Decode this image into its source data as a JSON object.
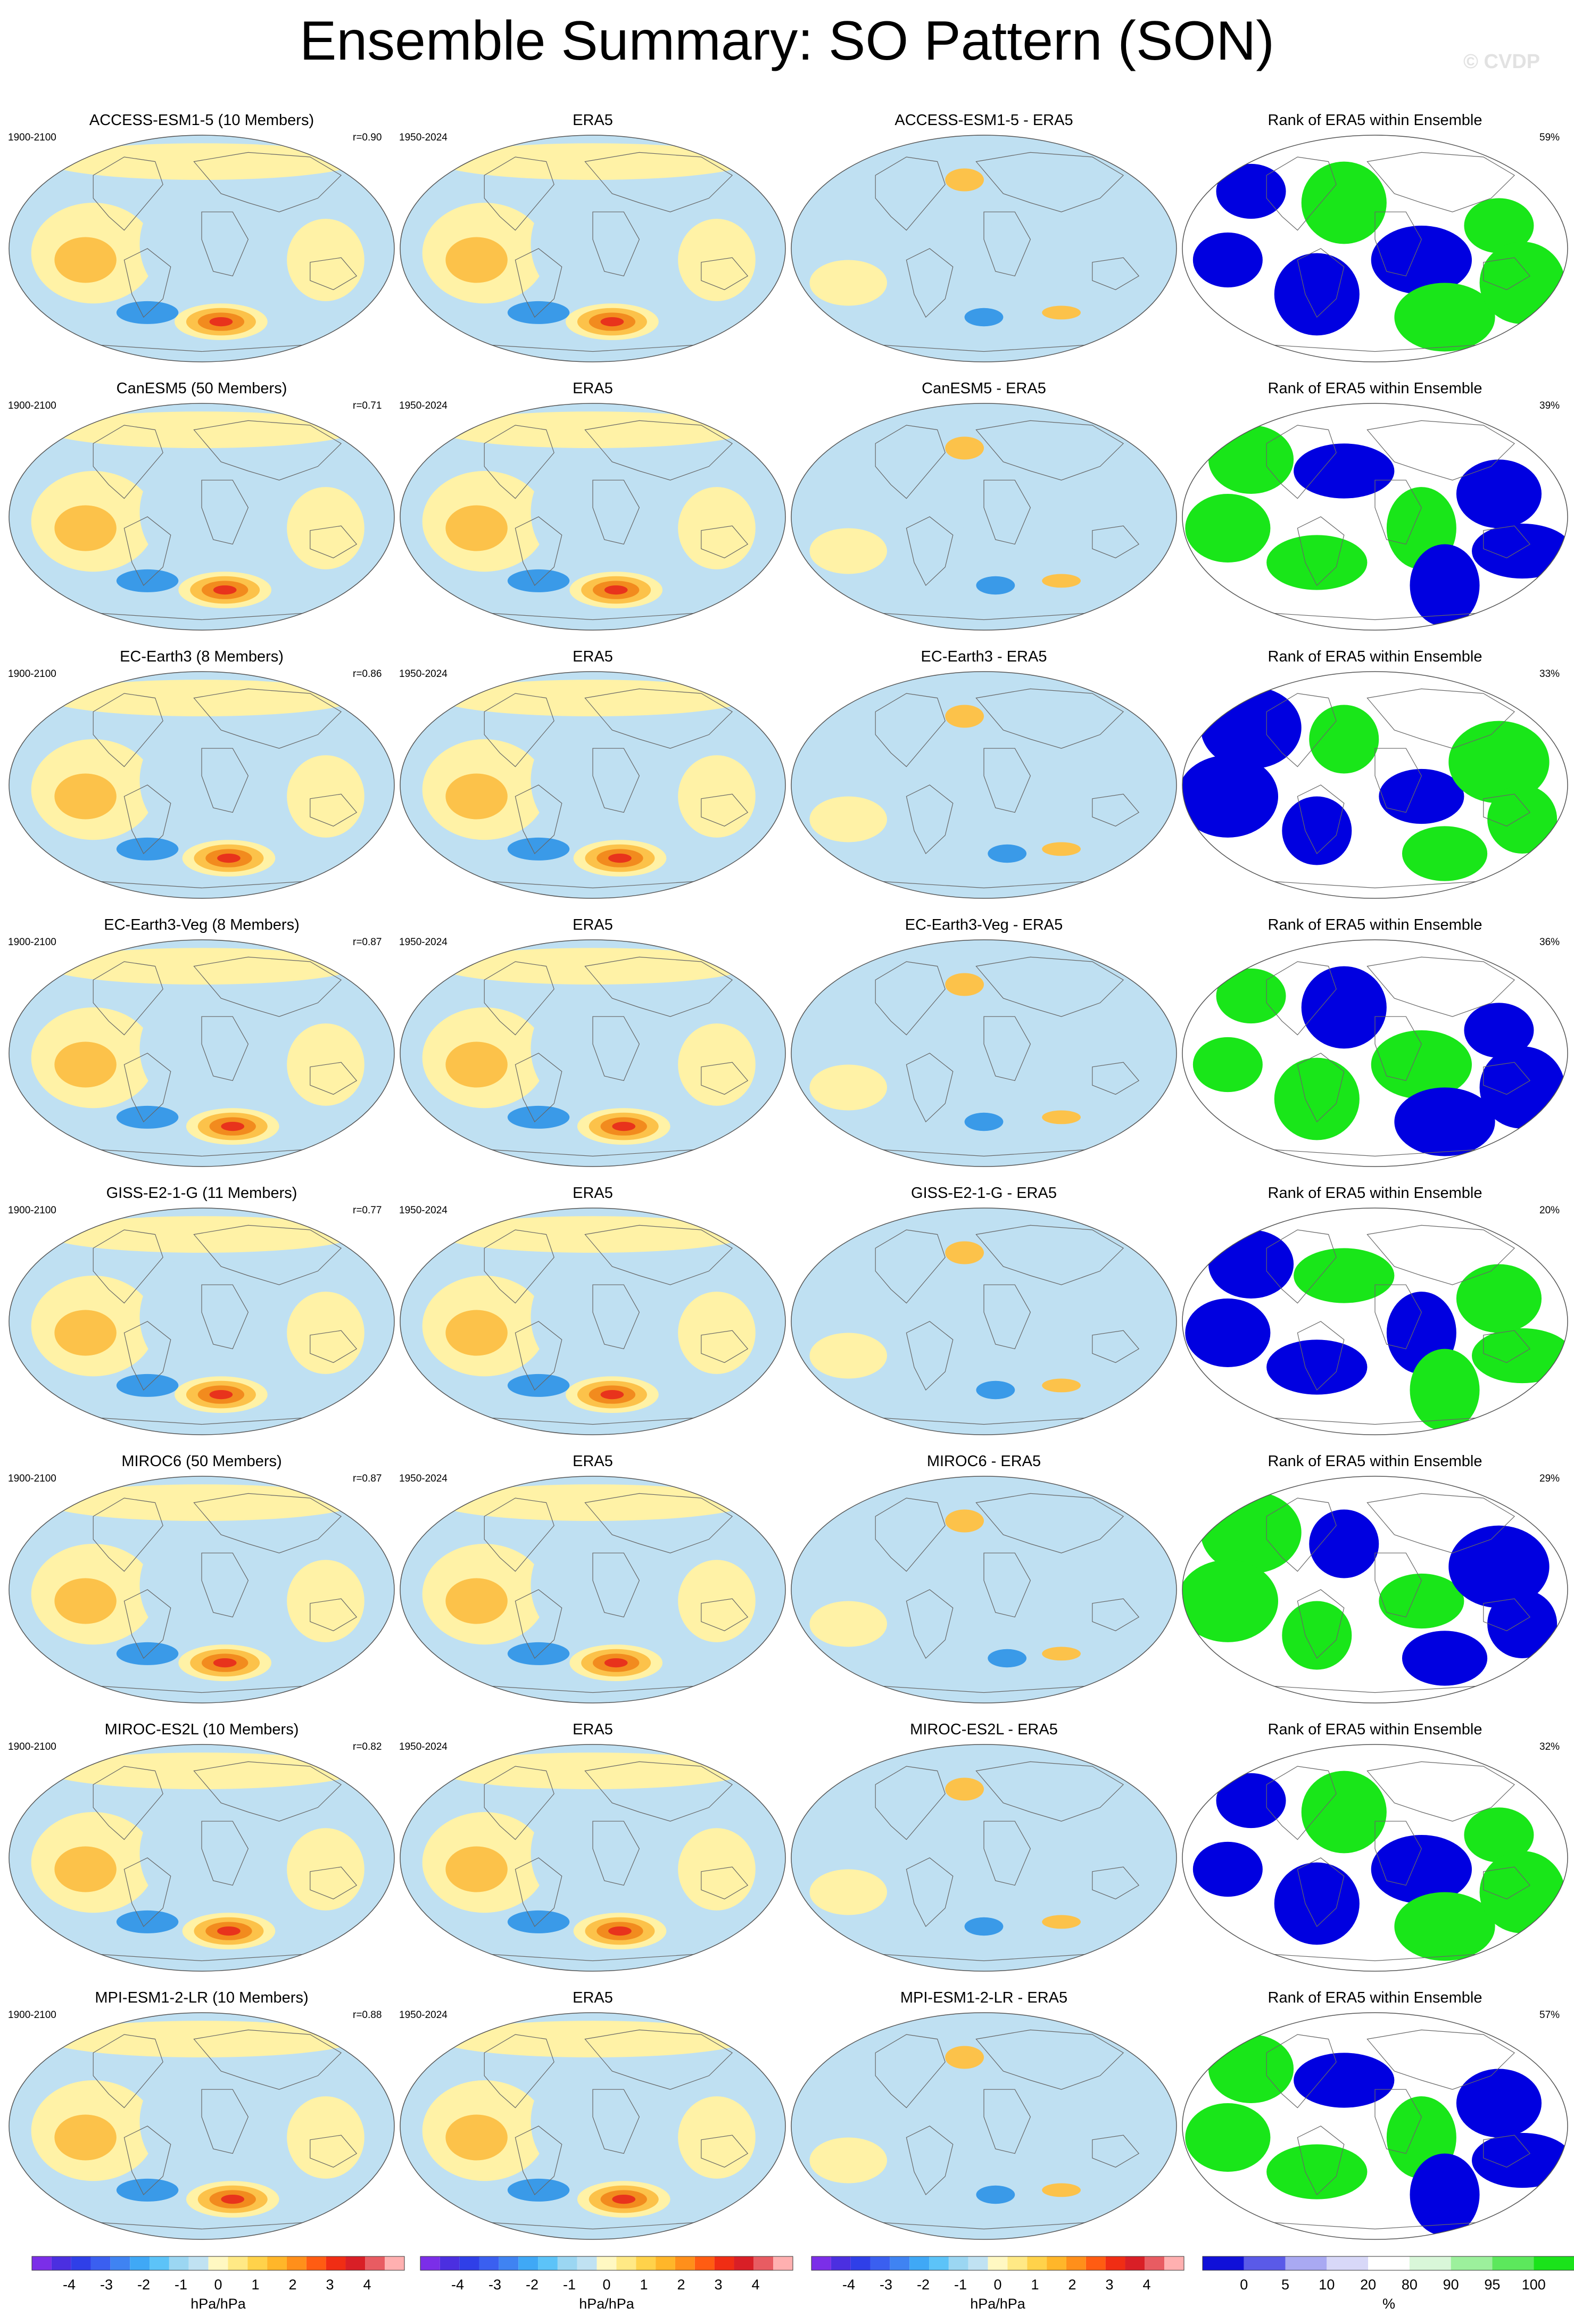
{
  "title": "Ensemble Summary: SO Pattern (SON)",
  "watermark": "© CVDP",
  "column_titles": {
    "era5": "ERA5",
    "rank": "Rank of ERA5 within Ensemble"
  },
  "periods": {
    "model": "1900-2100",
    "obs": "1950-2024"
  },
  "rows": [
    {
      "model_title": "ACCESS-ESM1-5 (10 Members)",
      "r": "r=0.90",
      "diff_title": "ACCESS-ESM1-5 - ERA5",
      "rank_pct": "59%"
    },
    {
      "model_title": "CanESM5 (50 Members)",
      "r": "r=0.71",
      "diff_title": "CanESM5 - ERA5",
      "rank_pct": "39%"
    },
    {
      "model_title": "EC-Earth3 (8 Members)",
      "r": "r=0.86",
      "diff_title": "EC-Earth3 - ERA5",
      "rank_pct": "33%"
    },
    {
      "model_title": "EC-Earth3-Veg (8 Members)",
      "r": "r=0.87",
      "diff_title": "EC-Earth3-Veg - ERA5",
      "rank_pct": "36%"
    },
    {
      "model_title": "GISS-E2-1-G (11 Members)",
      "r": "r=0.77",
      "diff_title": "GISS-E2-1-G - ERA5",
      "rank_pct": "20%"
    },
    {
      "model_title": "MIROC6 (50 Members)",
      "r": "r=0.87",
      "diff_title": "MIROC6 - ERA5",
      "rank_pct": "29%"
    },
    {
      "model_title": "MIROC-ES2L (10 Members)",
      "r": "r=0.82",
      "diff_title": "MIROC-ES2L - ERA5",
      "rank_pct": "32%"
    },
    {
      "model_title": "MPI-ESM1-2-LR (10 Members)",
      "r": "r=0.88",
      "diff_title": "MPI-ESM1-2-LR - ERA5",
      "rank_pct": "57%"
    }
  ],
  "colorbars": {
    "pattern": {
      "unit": "hPa/hPa",
      "ticks": [
        "-4",
        "-3",
        "-2",
        "-1",
        "0",
        "1",
        "2",
        "3",
        "4"
      ],
      "colors": [
        "#7b2ee8",
        "#4b2fe0",
        "#2f3fe8",
        "#3a5ff0",
        "#3f83f2",
        "#3fa8f6",
        "#5cc3f8",
        "#9bd6f2",
        "#c0e2f2",
        "#fff8c2",
        "#ffe985",
        "#ffd24a",
        "#ffb629",
        "#ff8f1a",
        "#ff5c12",
        "#f02d14",
        "#d91f26",
        "#e85c62",
        "#ffb0b0"
      ]
    },
    "rank": {
      "unit": "%",
      "ticks": [
        "0",
        "5",
        "10",
        "20",
        "80",
        "90",
        "95",
        "100"
      ],
      "colors": [
        "#1010d8",
        "#5a5ae8",
        "#a9a9f2",
        "#d8d8f8",
        "#ffffff",
        "#d9f7d9",
        "#9cf09c",
        "#5ce85c",
        "#1ae31a"
      ]
    }
  },
  "palette": {
    "ocean_blue": "#bfe0f2",
    "yellow": "#fff2a6",
    "orange": "#fcc24a",
    "dark_orange": "#f28b1e",
    "red": "#e8331c",
    "blue": "#3a9ae8",
    "rank_blue": "#0000e0",
    "rank_green": "#19e619"
  },
  "chart_data": [
    {
      "type": "heatmap",
      "panel": "model",
      "title": "ACCESS-ESM1-5 (10 Members)",
      "units": "hPa/hPa",
      "levels": [
        -4,
        -3,
        -2,
        -1,
        0,
        1,
        2,
        3,
        4
      ]
    },
    {
      "type": "heatmap",
      "panel": "obs",
      "title": "ERA5",
      "units": "hPa/hPa",
      "levels": [
        -4,
        -3,
        -2,
        -1,
        0,
        1,
        2,
        3,
        4
      ]
    },
    {
      "type": "heatmap",
      "panel": "difference",
      "units": "hPa/hPa"
    },
    {
      "type": "heatmap",
      "panel": "rank",
      "title": "Rank of ERA5 within Ensemble",
      "units": "%",
      "levels": [
        0,
        5,
        10,
        20,
        80,
        90,
        95,
        100
      ]
    }
  ]
}
